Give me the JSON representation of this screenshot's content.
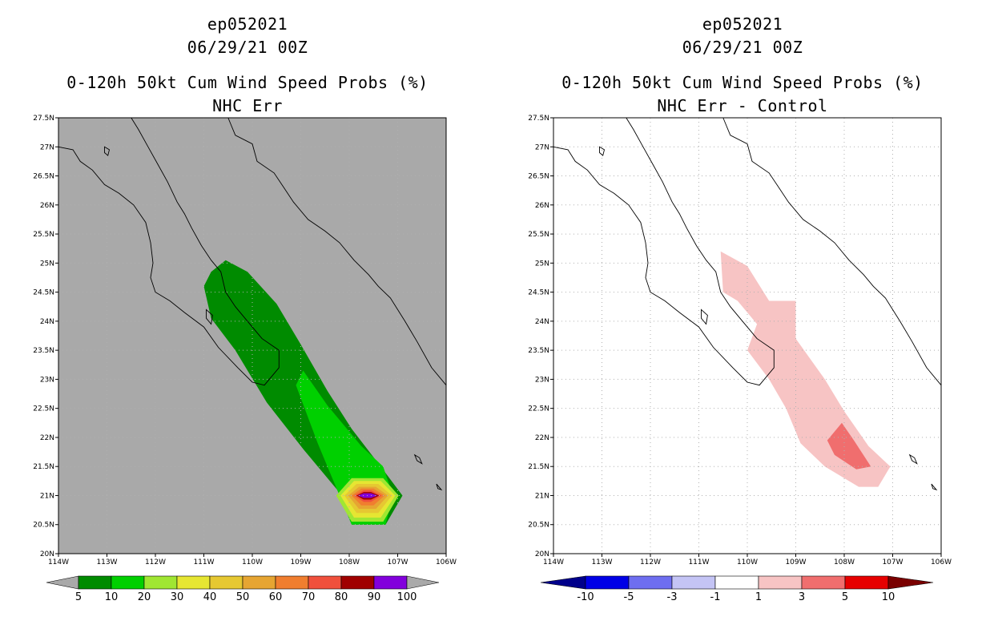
{
  "chart_data": [
    {
      "type": "contour_map",
      "title_lines": [
        "ep052021",
        "06/29/21 00Z",
        "0-120h 50kt Cum Wind Speed Probs (%)",
        "NHC Err"
      ],
      "xlabel": "",
      "ylabel": "",
      "xlim": [
        -114,
        -106
      ],
      "ylim": [
        20,
        27.5
      ],
      "x_ticks": [
        -114,
        -113,
        -112,
        -111,
        -110,
        -109,
        -108,
        -107,
        -106
      ],
      "x_tick_labels": [
        "114W",
        "113W",
        "112W",
        "111W",
        "110W",
        "109W",
        "108W",
        "107W",
        "106W"
      ],
      "y_ticks": [
        20,
        20.5,
        21,
        21.5,
        22,
        22.5,
        23,
        23.5,
        24,
        24.5,
        25,
        25.5,
        26,
        26.5,
        27,
        27.5
      ],
      "y_tick_labels": [
        "20N",
        "20.5N",
        "21N",
        "21.5N",
        "22N",
        "22.5N",
        "23N",
        "23.5N",
        "24N",
        "24.5N",
        "25N",
        "25.5N",
        "26N",
        "26.5N",
        "27N",
        "27.5N"
      ],
      "background": "#a9a9a9",
      "grid": true,
      "colorbar": {
        "labels": [
          "5",
          "10",
          "20",
          "30",
          "40",
          "50",
          "60",
          "70",
          "80",
          "90",
          "100"
        ],
        "colors": [
          "#008b00",
          "#00d000",
          "#a0e632",
          "#e6e632",
          "#e6c832",
          "#e6a532",
          "#f07e2f",
          "#f0503c",
          "#a00000",
          "#8200dc"
        ],
        "under_color": "#a9a9a9",
        "over_color": "#a9a9a9"
      },
      "contours": [
        {
          "level": 5,
          "color": "#008b00",
          "points": [
            [
              -110.55,
              25.05
            ],
            [
              -110.1,
              24.85
            ],
            [
              -109.5,
              24.3
            ],
            [
              -109.0,
              23.6
            ],
            [
              -108.45,
              22.8
            ],
            [
              -107.95,
              22.15
            ],
            [
              -107.35,
              21.5
            ],
            [
              -106.9,
              21.0
            ],
            [
              -107.25,
              20.5
            ],
            [
              -107.95,
              20.5
            ],
            [
              -108.2,
              21.05
            ],
            [
              -108.95,
              21.8
            ],
            [
              -109.7,
              22.6
            ],
            [
              -110.35,
              23.5
            ],
            [
              -110.85,
              24.05
            ],
            [
              -111.0,
              24.6
            ],
            [
              -110.85,
              24.85
            ]
          ]
        },
        {
          "level": 10,
          "color": "#00d000",
          "points": [
            [
              -108.95,
              23.15
            ],
            [
              -108.45,
              22.55
            ],
            [
              -107.75,
              21.85
            ],
            [
              -107.3,
              21.5
            ],
            [
              -107.1,
              21.0
            ],
            [
              -107.25,
              20.5
            ],
            [
              -107.95,
              20.5
            ],
            [
              -108.2,
              21.0
            ],
            [
              -108.65,
              21.9
            ],
            [
              -109.1,
              22.9
            ]
          ]
        },
        {
          "level": 20,
          "color": "#a0e632",
          "points": [
            [
              -107.95,
              21.3
            ],
            [
              -107.3,
              21.3
            ],
            [
              -106.98,
              21.0
            ],
            [
              -107.3,
              20.55
            ],
            [
              -107.95,
              20.55
            ],
            [
              -108.27,
              21.0
            ]
          ]
        },
        {
          "level": 30,
          "color": "#e6e632",
          "points": [
            [
              -107.9,
              21.25
            ],
            [
              -107.35,
              21.25
            ],
            [
              -107.05,
              21.0
            ],
            [
              -107.35,
              20.62
            ],
            [
              -107.9,
              20.62
            ],
            [
              -108.18,
              21.0
            ]
          ]
        },
        {
          "level": 40,
          "color": "#e6c832",
          "points": [
            [
              -107.85,
              21.2
            ],
            [
              -107.4,
              21.2
            ],
            [
              -107.12,
              21.0
            ],
            [
              -107.4,
              20.7
            ],
            [
              -107.85,
              20.7
            ],
            [
              -108.1,
              21.0
            ]
          ]
        },
        {
          "level": 50,
          "color": "#e6a532",
          "points": [
            [
              -107.8,
              21.15
            ],
            [
              -107.45,
              21.15
            ],
            [
              -107.2,
              21.0
            ],
            [
              -107.45,
              20.77
            ],
            [
              -107.8,
              20.77
            ],
            [
              -108.02,
              21.0
            ]
          ]
        },
        {
          "level": 60,
          "color": "#f07e2f",
          "points": [
            [
              -107.75,
              21.12
            ],
            [
              -107.5,
              21.12
            ],
            [
              -107.27,
              21.0
            ],
            [
              -107.5,
              20.83
            ],
            [
              -107.75,
              20.83
            ],
            [
              -107.95,
              21.0
            ]
          ]
        },
        {
          "level": 70,
          "color": "#f0503c",
          "points": [
            [
              -107.7,
              21.09
            ],
            [
              -107.55,
              21.09
            ],
            [
              -107.33,
              21.0
            ],
            [
              -107.55,
              20.89
            ],
            [
              -107.7,
              20.89
            ],
            [
              -107.9,
              21.0
            ]
          ]
        },
        {
          "level": 80,
          "color": "#a00000",
          "points": [
            [
              -107.7,
              21.06
            ],
            [
              -107.55,
              21.06
            ],
            [
              -107.38,
              21.0
            ],
            [
              -107.55,
              20.93
            ],
            [
              -107.7,
              20.93
            ],
            [
              -107.85,
              21.0
            ]
          ]
        },
        {
          "level": 90,
          "color": "#8200dc",
          "points": [
            [
              -107.7,
              21.04
            ],
            [
              -107.55,
              21.04
            ],
            [
              -107.42,
              21.0
            ],
            [
              -107.55,
              20.96
            ],
            [
              -107.7,
              20.96
            ],
            [
              -107.82,
              21.0
            ]
          ]
        }
      ]
    },
    {
      "type": "contour_map",
      "title_lines": [
        "ep052021",
        "06/29/21 00Z",
        "0-120h 50kt Cum Wind Speed Probs (%)",
        "NHC Err - Control"
      ],
      "xlabel": "",
      "ylabel": "",
      "xlim": [
        -114,
        -106
      ],
      "ylim": [
        20,
        27.5
      ],
      "x_ticks": [
        -114,
        -113,
        -112,
        -111,
        -110,
        -109,
        -108,
        -107,
        -106
      ],
      "x_tick_labels": [
        "114W",
        "113W",
        "112W",
        "111W",
        "110W",
        "109W",
        "108W",
        "107W",
        "106W"
      ],
      "y_ticks": [
        20,
        20.5,
        21,
        21.5,
        22,
        22.5,
        23,
        23.5,
        24,
        24.5,
        25,
        25.5,
        26,
        26.5,
        27,
        27.5
      ],
      "y_tick_labels": [
        "20N",
        "20.5N",
        "21N",
        "21.5N",
        "22N",
        "22.5N",
        "23N",
        "23.5N",
        "24N",
        "24.5N",
        "25N",
        "25.5N",
        "26N",
        "26.5N",
        "27N",
        "27.5N"
      ],
      "background": "#ffffff",
      "grid": true,
      "colorbar": {
        "labels": [
          "-10",
          "-5",
          "-3",
          "-1",
          "1",
          "3",
          "5",
          "10"
        ],
        "colors": [
          "#0000e6",
          "#6e6ef0",
          "#c4c4f5",
          "#ffffff",
          "#f7c4c4",
          "#f06e6e",
          "#e60000"
        ],
        "under_color": "#00008b",
        "over_color": "#7a0000"
      },
      "contours": [
        {
          "level": 1,
          "color": "#f7c4c4",
          "points": [
            [
              -110.55,
              25.2
            ],
            [
              -110.0,
              24.95
            ],
            [
              -109.55,
              24.35
            ],
            [
              -109.0,
              24.35
            ],
            [
              -109.0,
              23.7
            ],
            [
              -108.4,
              23.0
            ],
            [
              -108.0,
              22.45
            ],
            [
              -107.5,
              21.85
            ],
            [
              -107.05,
              21.5
            ],
            [
              -107.3,
              21.15
            ],
            [
              -107.7,
              21.15
            ],
            [
              -108.4,
              21.5
            ],
            [
              -108.9,
              21.9
            ],
            [
              -109.2,
              22.5
            ],
            [
              -109.55,
              23.0
            ],
            [
              -110.0,
              23.5
            ],
            [
              -109.8,
              23.95
            ],
            [
              -110.2,
              24.35
            ],
            [
              -110.5,
              24.5
            ]
          ]
        },
        {
          "level": 3,
          "color": "#f06e6e",
          "points": [
            [
              -108.05,
              22.25
            ],
            [
              -107.8,
              21.95
            ],
            [
              -107.45,
              21.5
            ],
            [
              -107.75,
              21.45
            ],
            [
              -108.2,
              21.7
            ],
            [
              -108.35,
              21.95
            ]
          ]
        }
      ]
    }
  ]
}
